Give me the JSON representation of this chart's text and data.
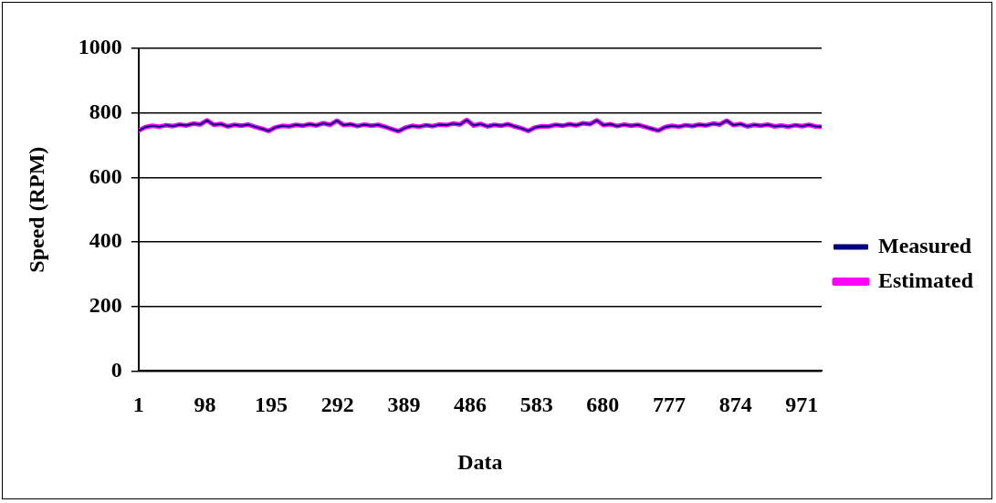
{
  "chart_data": {
    "type": "line",
    "xlabel": "Data",
    "ylabel": "Speed (RPM)",
    "x": [
      1,
      11,
      21,
      31,
      41,
      51,
      61,
      71,
      81,
      91,
      101,
      111,
      121,
      131,
      141,
      151,
      161,
      171,
      181,
      191,
      201,
      211,
      221,
      231,
      241,
      251,
      261,
      271,
      281,
      291,
      301,
      311,
      321,
      331,
      341,
      351,
      361,
      371,
      381,
      391,
      401,
      411,
      421,
      431,
      441,
      451,
      461,
      471,
      481,
      491,
      501,
      511,
      521,
      531,
      541,
      551,
      561,
      571,
      581,
      591,
      601,
      611,
      621,
      631,
      641,
      651,
      661,
      671,
      681,
      691,
      701,
      711,
      721,
      731,
      741,
      751,
      761,
      771,
      781,
      791,
      801,
      811,
      821,
      831,
      841,
      851,
      861,
      871,
      881,
      891,
      901,
      911,
      921,
      931,
      941,
      951,
      961,
      971,
      981,
      991,
      1000
    ],
    "series": [
      {
        "name": "Measured",
        "color": "#000080",
        "values": [
          745,
          756,
          760,
          757,
          762,
          759,
          764,
          761,
          767,
          764,
          777,
          763,
          766,
          758,
          763,
          760,
          764,
          757,
          751,
          744,
          755,
          760,
          758,
          763,
          760,
          765,
          761,
          768,
          763,
          776,
          762,
          765,
          759,
          764,
          760,
          763,
          757,
          750,
          743,
          754,
          760,
          757,
          762,
          759,
          764,
          762,
          767,
          764,
          778,
          761,
          766,
          758,
          763,
          760,
          765,
          758,
          752,
          744,
          755,
          759,
          758,
          763,
          760,
          765,
          761,
          768,
          765,
          777,
          762,
          765,
          759,
          764,
          760,
          763,
          757,
          751,
          745,
          756,
          760,
          757,
          762,
          759,
          764,
          761,
          767,
          764,
          776,
          762,
          766,
          758,
          763,
          760,
          764,
          758,
          761,
          757,
          762,
          759,
          763,
          758,
          757
        ]
      },
      {
        "name": "Estimated",
        "color": "#ff00ff",
        "values": [
          745,
          756,
          760,
          757,
          762,
          759,
          764,
          761,
          767,
          764,
          777,
          763,
          766,
          758,
          763,
          760,
          764,
          757,
          751,
          744,
          755,
          760,
          758,
          763,
          760,
          765,
          761,
          768,
          763,
          776,
          762,
          765,
          759,
          764,
          760,
          763,
          757,
          750,
          743,
          754,
          760,
          757,
          762,
          759,
          764,
          762,
          767,
          764,
          778,
          761,
          766,
          758,
          763,
          760,
          765,
          758,
          752,
          744,
          755,
          759,
          758,
          763,
          760,
          765,
          761,
          768,
          765,
          777,
          762,
          765,
          759,
          764,
          760,
          763,
          757,
          751,
          745,
          756,
          760,
          757,
          762,
          759,
          764,
          761,
          767,
          764,
          776,
          762,
          766,
          758,
          763,
          760,
          764,
          758,
          761,
          757,
          762,
          759,
          763,
          758,
          757
        ]
      }
    ],
    "xlim": [
      1,
      1000
    ],
    "xticks": [
      1,
      98,
      195,
      292,
      389,
      486,
      583,
      680,
      777,
      874,
      971
    ],
    "ylim": [
      0,
      1000
    ],
    "yticks": [
      0,
      200,
      400,
      600,
      800,
      1000
    ],
    "grid": "y",
    "legend": "right",
    "marker": "none",
    "line_style": "solid"
  }
}
